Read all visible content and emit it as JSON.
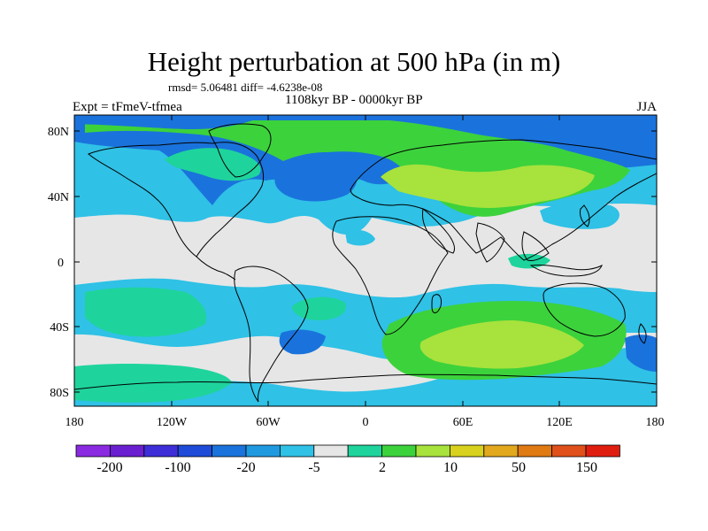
{
  "title": "Height perturbation at 500 hPa (in m)",
  "stats": "rmsd= 5.06481 diff= -4.6238e-08",
  "period": "1108kyr BP - 0000kyr BP",
  "experiment": "Expt = tFmeV-tfmea",
  "season": "JJA",
  "axes": {
    "lat_ticks": [
      "80N",
      "40N",
      "0",
      "40S",
      "80S"
    ],
    "lon_ticks": [
      "180",
      "120W",
      "60W",
      "0",
      "60E",
      "120E",
      "180"
    ]
  },
  "colorbar": {
    "colors": [
      "#8a2be2",
      "#6a1fd0",
      "#3d2ed8",
      "#1e4bd8",
      "#1a73dc",
      "#1f9ae0",
      "#2fc1e6",
      "#e6e6e6",
      "#1ed49c",
      "#3cd23c",
      "#a8e23c",
      "#d8d21e",
      "#e2a81e",
      "#e07a12",
      "#e0501a",
      "#e01e10"
    ],
    "labels": [
      "-200",
      "-100",
      "-20",
      "-5",
      "2",
      "10",
      "50",
      "150"
    ]
  },
  "legend": {
    "land_outline": "#000000",
    "near_zero": "#e6e6e6"
  }
}
